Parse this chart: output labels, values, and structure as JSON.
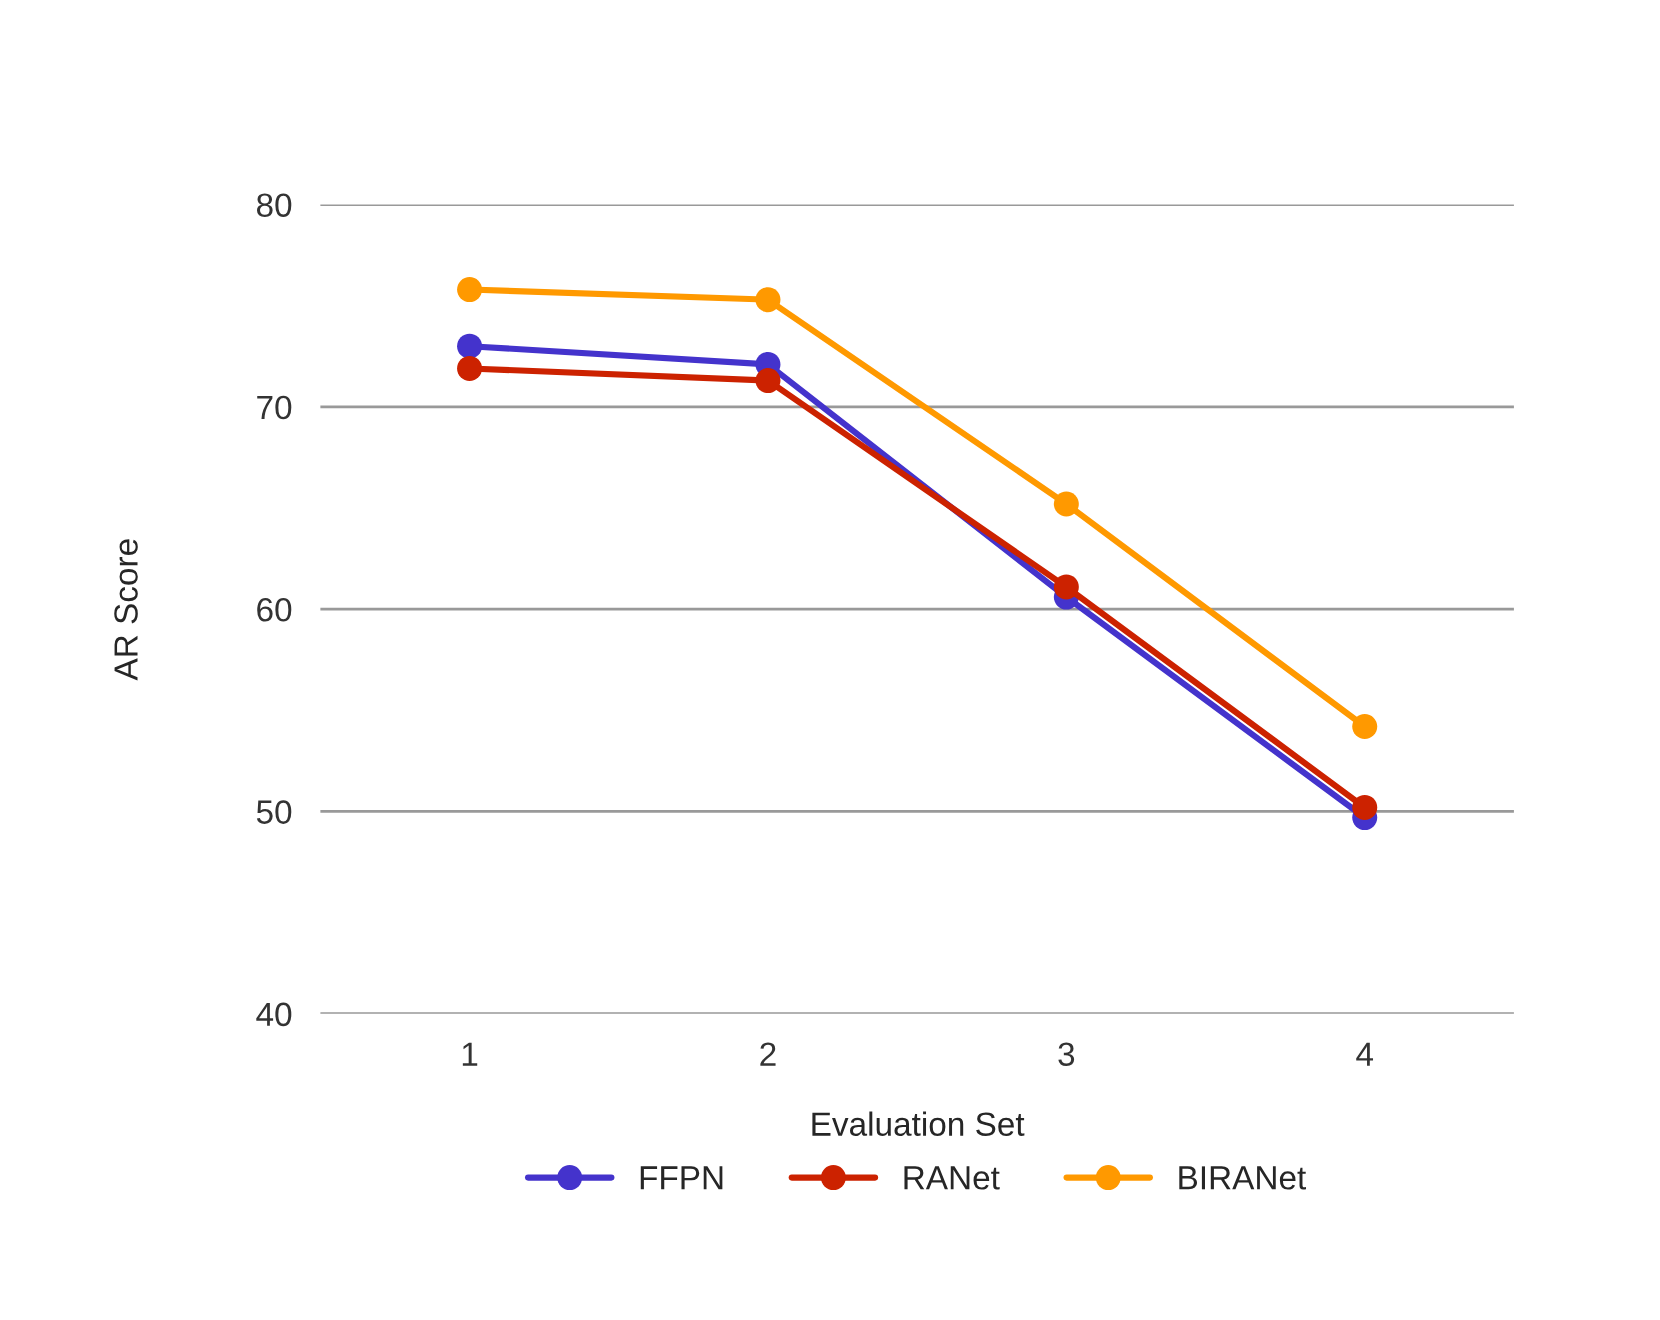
{
  "chart_data": {
    "type": "line",
    "xlabel": "Evaluation Set",
    "ylabel": "AR Score",
    "categories": [
      "1",
      "2",
      "3",
      "4"
    ],
    "series": [
      {
        "name": "FFPN",
        "color": "#4433cc",
        "values": [
          73.0,
          72.1,
          60.6,
          49.7
        ]
      },
      {
        "name": "RANet",
        "color": "#cc2200",
        "values": [
          71.9,
          71.3,
          61.1,
          50.2
        ]
      },
      {
        "name": "BIRANet",
        "color": "#ff9900",
        "values": [
          75.8,
          75.3,
          65.2,
          54.2
        ]
      }
    ],
    "ylim": [
      40,
      80
    ],
    "yticks": [
      40,
      50,
      60,
      70,
      80
    ],
    "grid": "y",
    "legend": "bottom",
    "marker": "circle",
    "line_style": "solid"
  }
}
